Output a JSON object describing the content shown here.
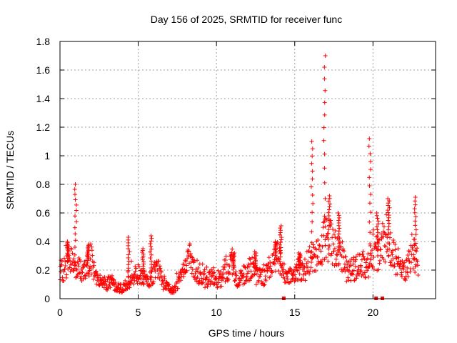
{
  "chart_data": {
    "type": "scatter",
    "title": "Day 156 of 2025, SRMTID for receiver func",
    "xlabel": "GPS time / hours",
    "ylabel": "SRMTID / TECUs",
    "xlim": [
      0,
      24
    ],
    "ylim": [
      0,
      1.8
    ],
    "grid": true,
    "marker": "+",
    "color": "#ff0000",
    "xticks": [
      0,
      5,
      10,
      15,
      20
    ],
    "xtick_labels": [
      "0",
      "5",
      "10",
      "15",
      "20"
    ],
    "yticks": [
      0,
      0.2,
      0.4,
      0.6,
      0.8,
      1,
      1.2,
      1.4,
      1.6,
      1.8
    ],
    "ytick_labels": [
      "0",
      "0.2",
      "0.4",
      "0.6",
      "0.8",
      "1",
      "1.2",
      "1.4",
      "1.6",
      "1.8"
    ],
    "profile": {
      "x": [
        0.0,
        0.3,
        0.6,
        0.9,
        1.2,
        1.5,
        1.8,
        2.0,
        2.3,
        2.6,
        3.0,
        3.3,
        3.6,
        4.0,
        4.3,
        4.6,
        5.0,
        5.3,
        5.6,
        6.0,
        6.3,
        6.6,
        7.0,
        7.3,
        7.6,
        8.0,
        8.3,
        8.6,
        9.0,
        9.3,
        9.6,
        10.0,
        10.3,
        10.6,
        11.0,
        11.3,
        11.6,
        12.0,
        12.3,
        12.6,
        13.0,
        13.3,
        13.6,
        14.0,
        14.3,
        14.6,
        15.0,
        15.3,
        15.6,
        16.0,
        16.3,
        16.6,
        17.0,
        17.3,
        17.6,
        18.0,
        18.3,
        18.6,
        19.0,
        19.3,
        19.6,
        20.0,
        20.3,
        20.6,
        21.0,
        21.3,
        21.6,
        22.0,
        22.3,
        22.6,
        22.9
      ],
      "y": [
        0.22,
        0.2,
        0.3,
        0.25,
        0.2,
        0.17,
        0.25,
        0.28,
        0.15,
        0.12,
        0.1,
        0.12,
        0.08,
        0.07,
        0.1,
        0.15,
        0.18,
        0.15,
        0.12,
        0.18,
        0.2,
        0.1,
        0.07,
        0.06,
        0.12,
        0.25,
        0.28,
        0.22,
        0.15,
        0.12,
        0.15,
        0.12,
        0.14,
        0.18,
        0.25,
        0.12,
        0.15,
        0.2,
        0.22,
        0.15,
        0.15,
        0.2,
        0.25,
        0.3,
        0.18,
        0.15,
        0.17,
        0.22,
        0.2,
        0.28,
        0.3,
        0.3,
        0.45,
        0.4,
        0.35,
        0.3,
        0.2,
        0.2,
        0.22,
        0.25,
        0.2,
        0.35,
        0.3,
        0.4,
        0.45,
        0.3,
        0.22,
        0.2,
        0.25,
        0.3,
        0.25
      ]
    },
    "spikes": [
      {
        "x": 0.5,
        "peak": 0.4
      },
      {
        "x": 1.0,
        "peak": 0.8
      },
      {
        "x": 1.8,
        "peak": 0.38
      },
      {
        "x": 4.4,
        "peak": 0.43
      },
      {
        "x": 5.3,
        "peak": 0.35
      },
      {
        "x": 5.8,
        "peak": 0.44
      },
      {
        "x": 11.1,
        "peak": 0.32
      },
      {
        "x": 12.5,
        "peak": 0.33
      },
      {
        "x": 13.8,
        "peak": 0.4
      },
      {
        "x": 14.1,
        "peak": 0.51
      },
      {
        "x": 15.3,
        "peak": 0.32
      },
      {
        "x": 16.1,
        "peak": 1.1
      },
      {
        "x": 16.9,
        "peak": 1.7
      },
      {
        "x": 17.2,
        "peak": 0.72
      },
      {
        "x": 17.8,
        "peak": 0.6
      },
      {
        "x": 19.8,
        "peak": 1.12
      },
      {
        "x": 20.3,
        "peak": 0.6
      },
      {
        "x": 21.0,
        "peak": 0.7
      },
      {
        "x": 22.7,
        "peak": 0.71
      }
    ],
    "zero_points": [
      14.3,
      20.2,
      20.6
    ]
  }
}
